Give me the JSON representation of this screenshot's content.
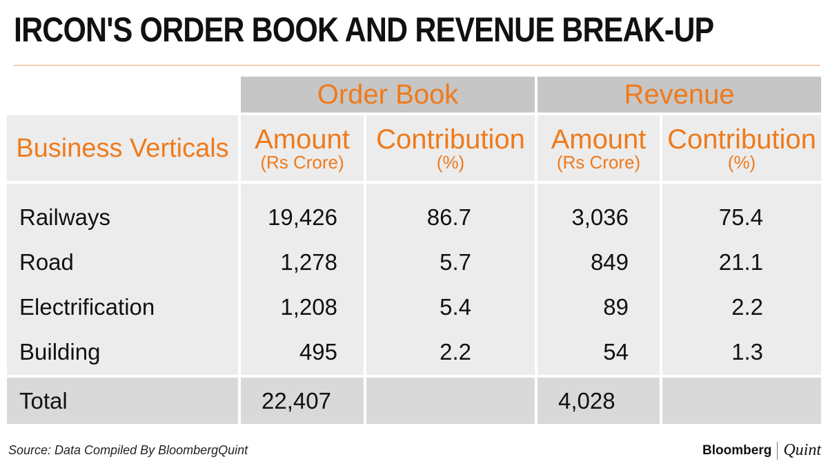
{
  "title": "IRCON'S ORDER BOOK AND REVENUE BREAK-UP",
  "chart_data": {
    "type": "table",
    "groups": [
      "Order Book",
      "Revenue"
    ],
    "row_header": "Business Verticals",
    "columns": [
      {
        "main": "Amount",
        "sub": "(Rs Crore)"
      },
      {
        "main": "Contribution",
        "sub": "(%)"
      },
      {
        "main": "Amount",
        "sub": "(Rs Crore)"
      },
      {
        "main": "Contribution",
        "sub": "(%)"
      }
    ],
    "rows": [
      {
        "label": "Railways",
        "values": [
          "19,426",
          "86.7",
          "3,036",
          "75.4"
        ]
      },
      {
        "label": "Road",
        "values": [
          "1,278",
          "5.7",
          "849",
          "21.1"
        ]
      },
      {
        "label": "Electrification",
        "values": [
          "1,208",
          "5.4",
          "89",
          "2.2"
        ]
      },
      {
        "label": "Building",
        "values": [
          "495",
          "2.2",
          "54",
          "1.3"
        ]
      }
    ],
    "total": {
      "label": "Total",
      "values": [
        "22,407",
        "",
        "4,028",
        ""
      ]
    }
  },
  "source": "Source: Data Compiled By BloombergQuint",
  "logo": {
    "left": "Bloomberg",
    "right": "Quint"
  },
  "colors": {
    "accent": "#ef7a1a",
    "header": "#c6c6c6",
    "cell": "#ececec",
    "total": "#d9d9d9"
  }
}
